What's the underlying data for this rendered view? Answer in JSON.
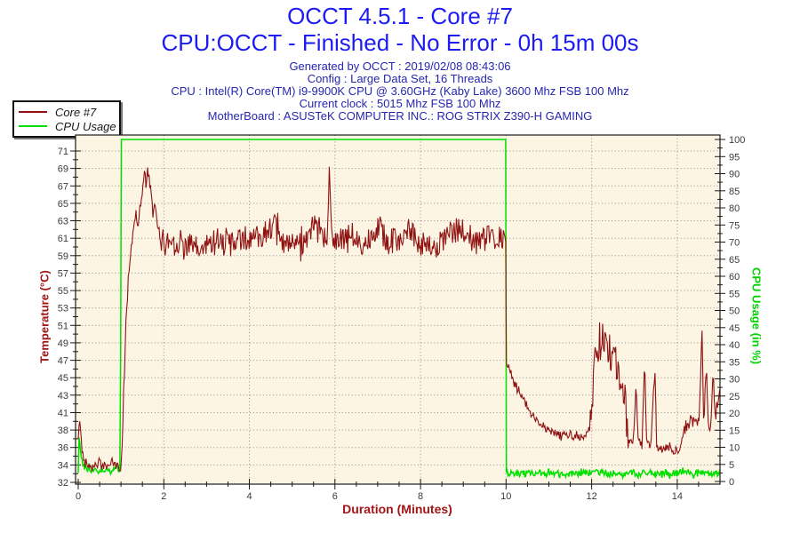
{
  "header": {
    "title": "OCCT 4.5.1 - Core #7",
    "subtitle": "CPU:OCCT - Finished - No Error - 0h 15m 00s",
    "title_color": "#1b1bf2",
    "info_color": "#2626b0",
    "info_lines": [
      "Generated by OCCT : 2019/02/08 08:43:06",
      "Config : Large Data Set, 16 Threads",
      "CPU : Intel(R) Core(TM) i9-9900K CPU @ 3.60GHz (Kaby Lake) 3600 Mhz FSB 100 Mhz",
      "Current clock : 5015 Mhz FSB 100 Mhz",
      "MotherBoard : ASUSTeK COMPUTER INC.: ROG STRIX Z390-H GAMING"
    ]
  },
  "legend": {
    "items": [
      {
        "label": "Core #7",
        "color": "#8e1212"
      },
      {
        "label": "CPU Usage",
        "color": "#00e000"
      }
    ]
  },
  "chart_data": {
    "type": "line",
    "title": "OCCT 4.5.1 - Core #7",
    "background": "#fdf5e4",
    "grid_color": "#8f8f8f",
    "frame_color": "#1a1a1a",
    "tick_text_color": "#3a3a3a",
    "x_axis": {
      "label": "Duration (Minutes)",
      "label_color": "#a31515",
      "min": 0,
      "max": 15,
      "major_tick": 2,
      "minor_tick": 0.5,
      "tick_labels": [
        "0",
        "2",
        "4",
        "6",
        "8",
        "10",
        "12",
        "14"
      ]
    },
    "y_left": {
      "label": "Temperature (°C)",
      "label_color": "#a31515",
      "min": 32,
      "max": 71,
      "tick_labels": [
        "32",
        "34",
        "36",
        "38",
        "41",
        "43",
        "45",
        "47",
        "49",
        "51",
        "53",
        "55",
        "57",
        "59",
        "61",
        "63",
        "65",
        "67",
        "69",
        "71"
      ]
    },
    "y_right": {
      "label": "CPU Usage (in %)",
      "label_color": "#00d400",
      "min": 0,
      "max": 100,
      "major_tick": 5,
      "tick_labels": [
        "0",
        "5",
        "10",
        "15",
        "20",
        "25",
        "30",
        "35",
        "40",
        "45",
        "50",
        "55",
        "60",
        "65",
        "70",
        "75",
        "80",
        "85",
        "90",
        "95",
        "100"
      ]
    },
    "series": [
      {
        "name": "CPU Usage",
        "axis": "right",
        "color": "#00e000",
        "width": 1.5,
        "seed": 77,
        "keypoints": [
          [
            0,
            2.5
          ],
          [
            0.02,
            14
          ],
          [
            0.06,
            8
          ],
          [
            0.12,
            4.5
          ],
          [
            0.3,
            3.5
          ],
          [
            0.6,
            3.2
          ],
          [
            0.9,
            3.8
          ],
          [
            0.985,
            4
          ],
          [
            1.0,
            100
          ],
          [
            9.995,
            100
          ],
          [
            10.0,
            2.6
          ],
          [
            10.5,
            2.3
          ],
          [
            11,
            2.5
          ],
          [
            11.5,
            2.1
          ],
          [
            12,
            2.6
          ],
          [
            12.5,
            2.3
          ],
          [
            13,
            2.5
          ],
          [
            13.5,
            2.2
          ],
          [
            14,
            2.5
          ],
          [
            14.5,
            2.3
          ],
          [
            15,
            2.2
          ]
        ],
        "noise": [
          [
            0.06,
            0.98,
            1.0
          ],
          [
            10.01,
            15,
            1.0
          ]
        ],
        "clamp": [
          0.3,
          100
        ]
      },
      {
        "name": "Core #7",
        "axis": "left",
        "color": "#8e1212",
        "width": 1.1,
        "seed": 42,
        "keypoints": [
          [
            0,
            37
          ],
          [
            0.04,
            39.8
          ],
          [
            0.08,
            36
          ],
          [
            0.15,
            34.3
          ],
          [
            0.3,
            34
          ],
          [
            0.5,
            34.2
          ],
          [
            0.65,
            33.9
          ],
          [
            0.8,
            34.4
          ],
          [
            0.92,
            33.8
          ],
          [
            1.0,
            33.6
          ],
          [
            1.03,
            37
          ],
          [
            1.07,
            44
          ],
          [
            1.12,
            51
          ],
          [
            1.17,
            56
          ],
          [
            1.22,
            59
          ],
          [
            1.27,
            61
          ],
          [
            1.31,
            62.8
          ],
          [
            1.35,
            63.4
          ],
          [
            1.39,
            62
          ],
          [
            1.45,
            64.8
          ],
          [
            1.5,
            66.4
          ],
          [
            1.55,
            68.4
          ],
          [
            1.59,
            67
          ],
          [
            1.63,
            68.9
          ],
          [
            1.69,
            66.2
          ],
          [
            1.74,
            63.8
          ],
          [
            1.79,
            64.4
          ],
          [
            1.87,
            61.6
          ],
          [
            1.95,
            60.4
          ],
          [
            2.2,
            60.5
          ],
          [
            2.5,
            60.2
          ],
          [
            2.85,
            59.2
          ],
          [
            3.2,
            60.8
          ],
          [
            3.6,
            60.3
          ],
          [
            4.0,
            60.5
          ],
          [
            4.35,
            61.4
          ],
          [
            4.55,
            62.4
          ],
          [
            4.8,
            60.1
          ],
          [
            5.1,
            59.6
          ],
          [
            5.3,
            60.6
          ],
          [
            5.5,
            62.2
          ],
          [
            5.7,
            60.3
          ],
          [
            5.83,
            61
          ],
          [
            5.87,
            69.3
          ],
          [
            5.92,
            61.5
          ],
          [
            6.1,
            60.3
          ],
          [
            6.4,
            60.7
          ],
          [
            6.7,
            60.1
          ],
          [
            7.0,
            62.3
          ],
          [
            7.25,
            60.3
          ],
          [
            7.5,
            60.6
          ],
          [
            7.7,
            62
          ],
          [
            7.95,
            60.3
          ],
          [
            8.3,
            59.3
          ],
          [
            8.6,
            60.8
          ],
          [
            8.9,
            61.9
          ],
          [
            9.2,
            60.3
          ],
          [
            9.5,
            60.7
          ],
          [
            9.8,
            60.9
          ],
          [
            9.99,
            60.3
          ],
          [
            10.0,
            46.2
          ],
          [
            10.08,
            45.2
          ],
          [
            10.2,
            43.8
          ],
          [
            10.33,
            42.5
          ],
          [
            10.45,
            41.3
          ],
          [
            10.6,
            40.1
          ],
          [
            10.75,
            39.1
          ],
          [
            10.9,
            38.5
          ],
          [
            11.05,
            37.9
          ],
          [
            11.3,
            37.5
          ],
          [
            11.55,
            37.7
          ],
          [
            11.8,
            37.4
          ],
          [
            11.95,
            38.3
          ],
          [
            12.0,
            40
          ],
          [
            12.05,
            44.2
          ],
          [
            12.1,
            48.2
          ],
          [
            12.14,
            45.2
          ],
          [
            12.18,
            50.3
          ],
          [
            12.22,
            46.6
          ],
          [
            12.26,
            50
          ],
          [
            12.3,
            47.2
          ],
          [
            12.34,
            49.8
          ],
          [
            12.38,
            45.6
          ],
          [
            12.42,
            48.6
          ],
          [
            12.46,
            44.6
          ],
          [
            12.5,
            47.6
          ],
          [
            12.54,
            49.2
          ],
          [
            12.58,
            44.2
          ],
          [
            12.62,
            46.6
          ],
          [
            12.66,
            42.6
          ],
          [
            12.7,
            45.4
          ],
          [
            12.74,
            41.2
          ],
          [
            12.78,
            42.6
          ],
          [
            12.82,
            38.6
          ],
          [
            12.88,
            36.7
          ],
          [
            12.98,
            36.9
          ],
          [
            13.04,
            44.2
          ],
          [
            13.08,
            36.9
          ],
          [
            13.18,
            36.5
          ],
          [
            13.24,
            47.1
          ],
          [
            13.28,
            37
          ],
          [
            13.38,
            36.3
          ],
          [
            13.48,
            45.7
          ],
          [
            13.52,
            36.1
          ],
          [
            13.65,
            35.9
          ],
          [
            13.8,
            36.1
          ],
          [
            13.95,
            35.7
          ],
          [
            14.05,
            35.9
          ],
          [
            14.1,
            36.6
          ],
          [
            14.16,
            38.4
          ],
          [
            14.25,
            38.9
          ],
          [
            14.35,
            39.4
          ],
          [
            14.45,
            38.7
          ],
          [
            14.52,
            39.9
          ],
          [
            14.58,
            50.2
          ],
          [
            14.62,
            38.9
          ],
          [
            14.68,
            46.1
          ],
          [
            14.72,
            39.1
          ],
          [
            14.78,
            38.7
          ],
          [
            14.84,
            44.7
          ],
          [
            14.88,
            39.4
          ],
          [
            14.93,
            40.6
          ],
          [
            15,
            43.1
          ]
        ],
        "noise": [
          [
            0,
            0.99,
            0.5
          ],
          [
            0.99,
            1.95,
            0.8
          ],
          [
            1.95,
            9.98,
            1.5
          ],
          [
            10.02,
            11.97,
            0.5
          ],
          [
            11.97,
            12.86,
            1.8
          ],
          [
            12.9,
            14.07,
            0.45
          ],
          [
            14.09,
            15,
            0.8
          ]
        ],
        "clamp": [
          32.2,
          70.9
        ]
      }
    ]
  }
}
